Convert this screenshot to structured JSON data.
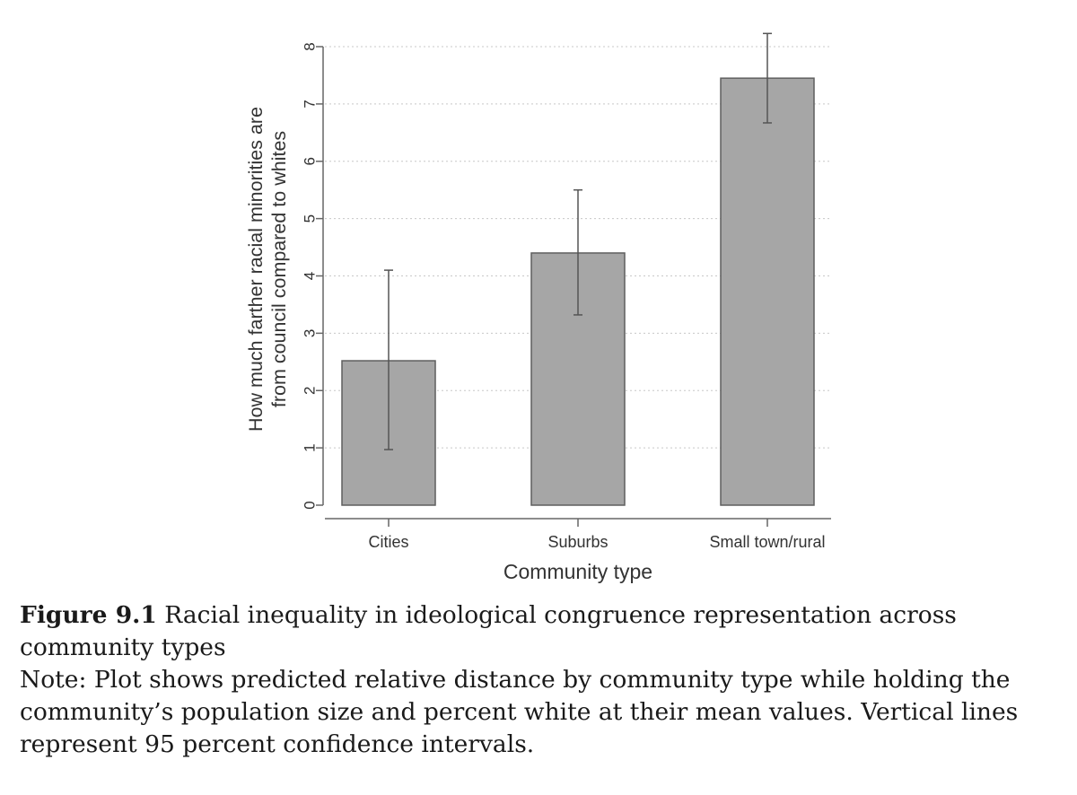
{
  "chart_data": {
    "type": "bar",
    "categories": [
      "Cities",
      "Suburbs",
      "Small town/rural"
    ],
    "values": [
      2.52,
      4.4,
      7.45
    ],
    "ci_lower": [
      0.97,
      3.32,
      6.67
    ],
    "ci_upper": [
      4.1,
      5.5,
      8.23
    ],
    "xlabel": "Community type",
    "ylabel_line1": "How much farther racial minorities are",
    "ylabel_line2": "from council compared to whites",
    "ylim": [
      0,
      8
    ],
    "yticks": [
      0,
      1,
      2,
      3,
      4,
      5,
      6,
      7,
      8
    ],
    "grid": "dotted horizontal",
    "bar_color": "#a6a6a6",
    "bar_edge_color": "#5f5f5f",
    "errorbar_color": "#555555"
  },
  "caption": {
    "figure_label": "Figure 9.1",
    "figure_title": "Racial inequality in ideological congruence representation across community types",
    "note": "Note: Plot shows predicted relative distance by community type while holding the community’s population size and percent white at their mean values. Vertical lines represent 95 percent confidence intervals."
  }
}
